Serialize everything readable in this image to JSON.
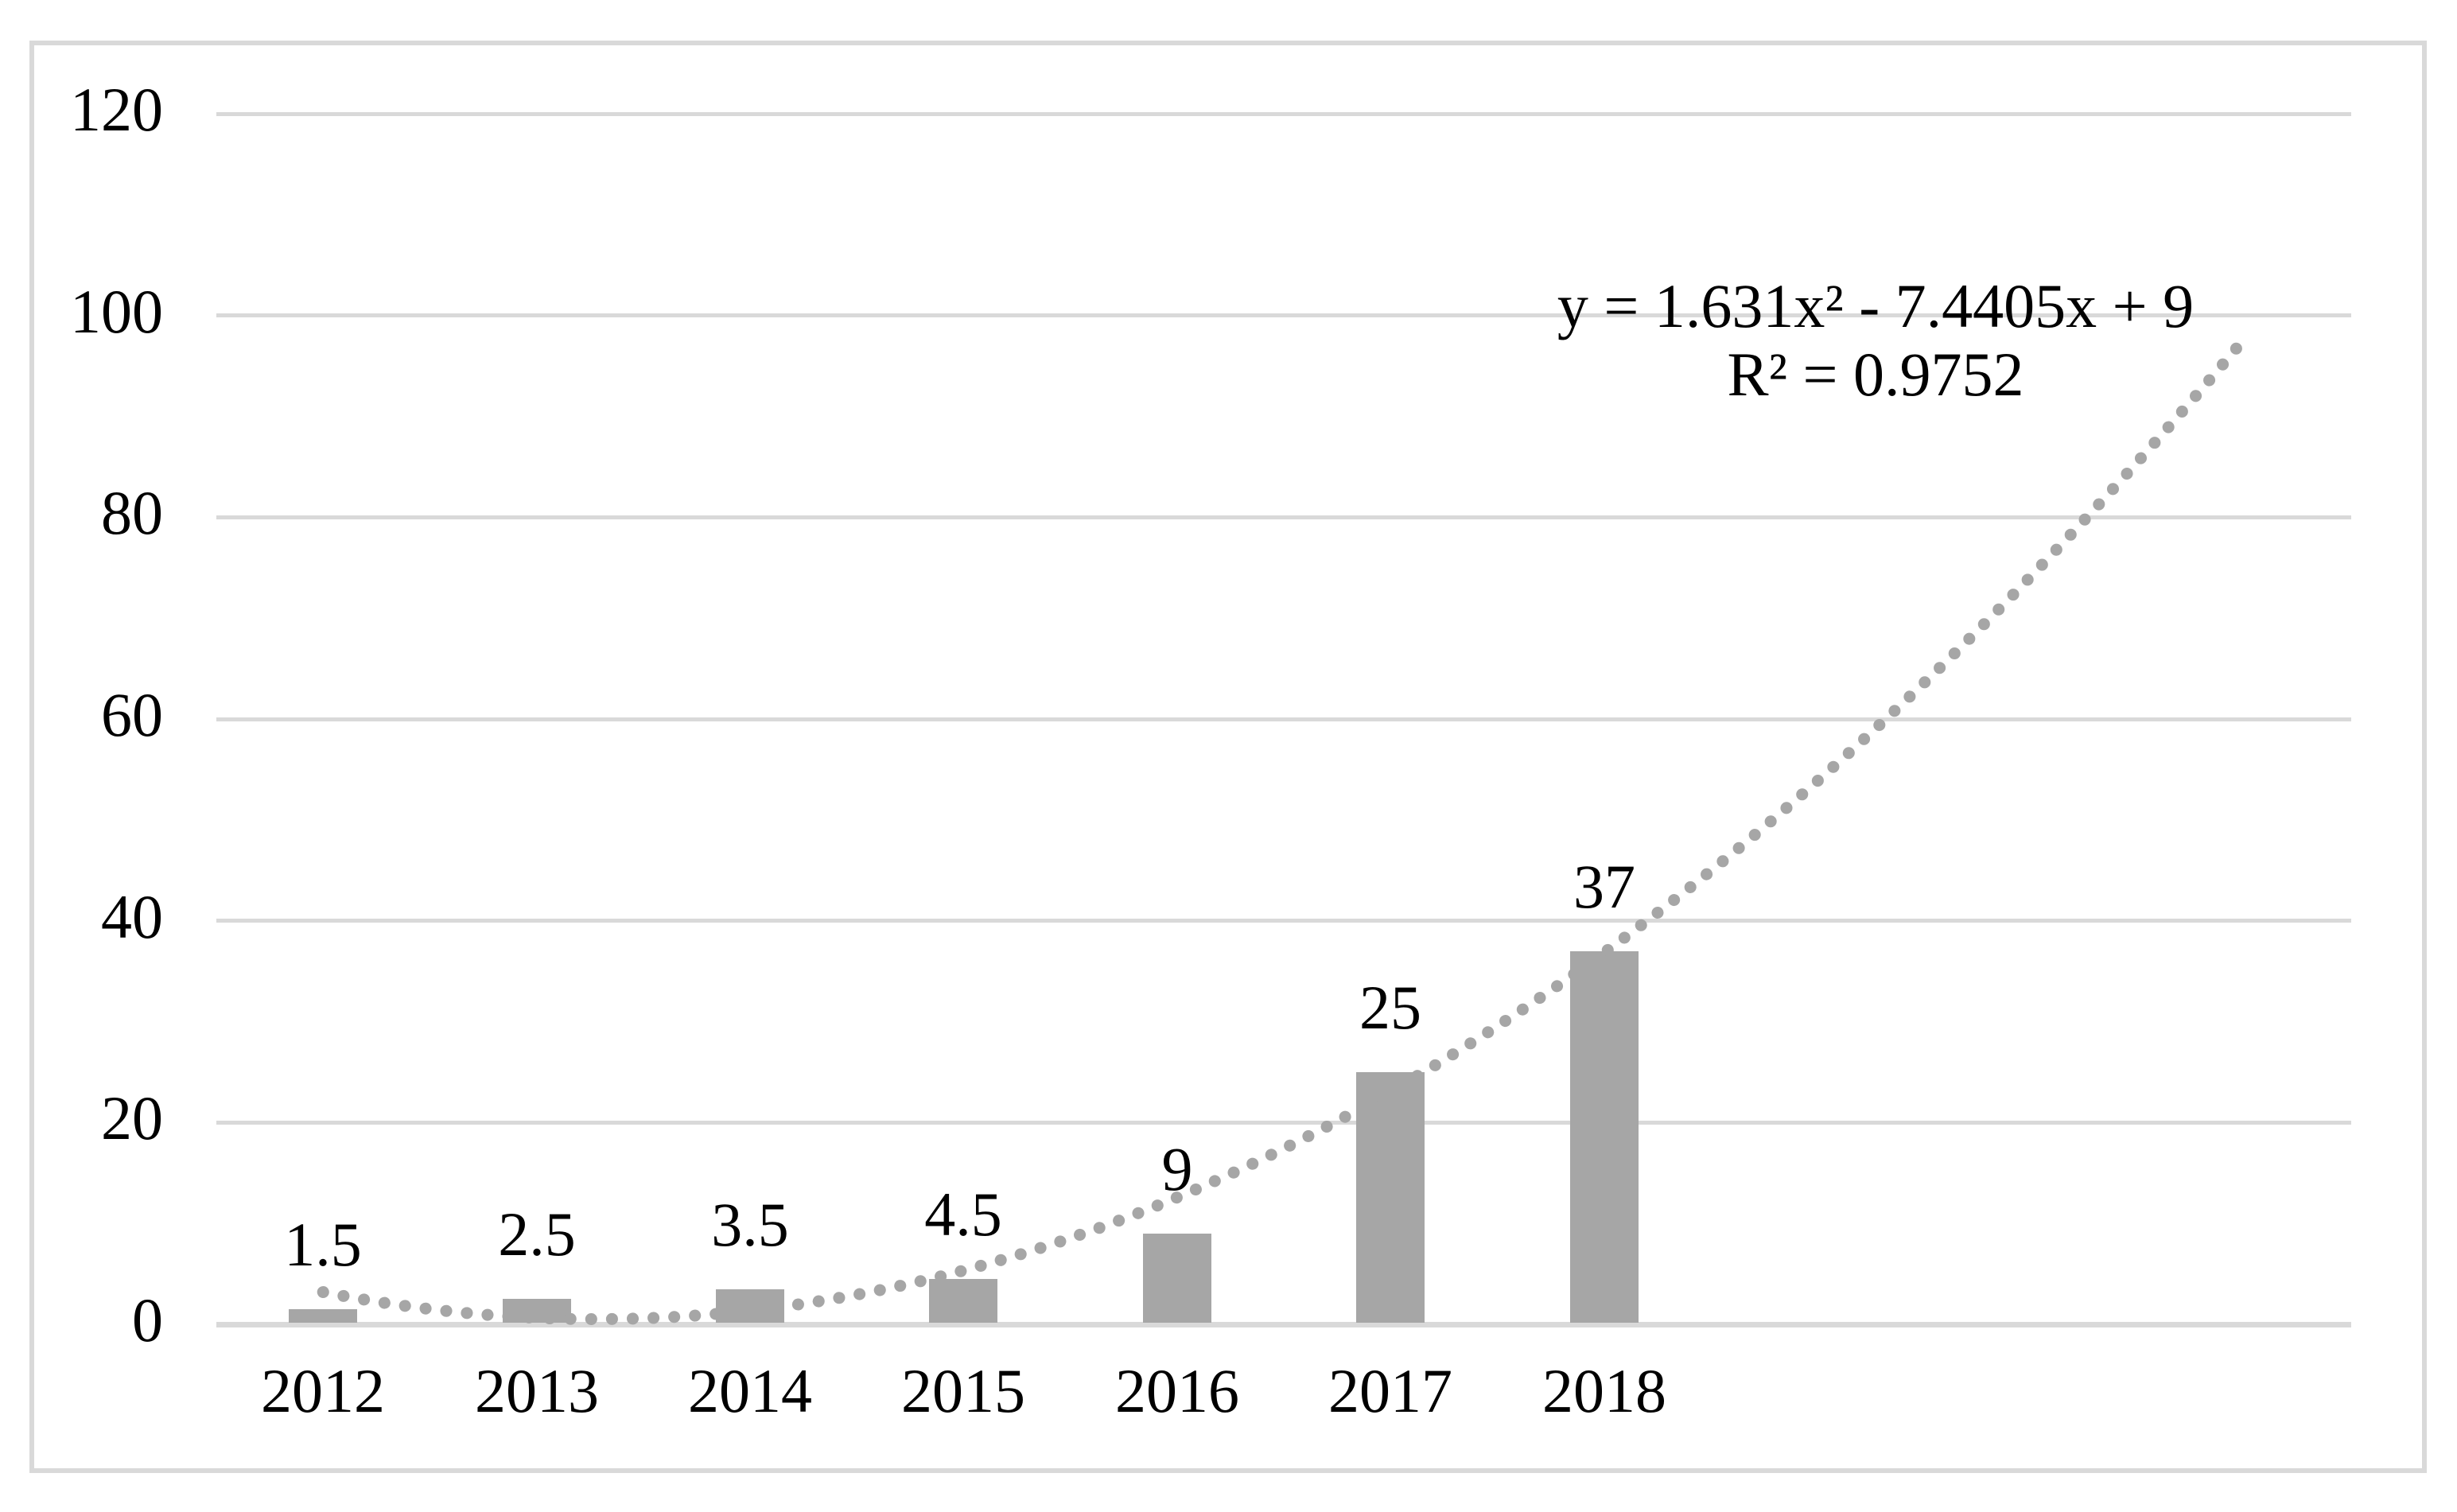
{
  "figure": {
    "background_color": "#ffffff",
    "border_color": "#d9d9d9",
    "text_color": "#000000"
  },
  "chart_data": {
    "type": "bar",
    "title": "",
    "xlabel": "",
    "ylabel": "",
    "categories": [
      "2012",
      "2013",
      "2014",
      "2015",
      "2016",
      "2017",
      "2018"
    ],
    "values": [
      1.5,
      2.5,
      3.5,
      4.5,
      9,
      25,
      37
    ],
    "data_labels": [
      "1.5",
      "2.5",
      "3.5",
      "4.5",
      "9",
      "25",
      "37"
    ],
    "ylim": [
      0,
      120
    ],
    "y_ticks": [
      0,
      20,
      40,
      60,
      80,
      100,
      120
    ],
    "y_tick_labels": [
      "0",
      "20",
      "40",
      "60",
      "80",
      "100",
      "120"
    ],
    "grid": true,
    "legend_position": "none",
    "total_category_slots": 10,
    "bar_color": "#a6a6a6",
    "gridline_color": "#d9d9d9",
    "axisline_color": "#d9d9d9",
    "trendline": {
      "style": "dotted",
      "color": "#a6a6a6",
      "poly_order": 2,
      "coeff_a": 1.631,
      "coeff_b": -7.4405,
      "coeff_c": 9,
      "x_start": 1,
      "x_end": 10,
      "r_squared": 0.9752
    },
    "annotations": {
      "equation_line1": "y = 1.631x² - 7.4405x + 9",
      "equation_line2": "R² = 0.9752"
    }
  }
}
